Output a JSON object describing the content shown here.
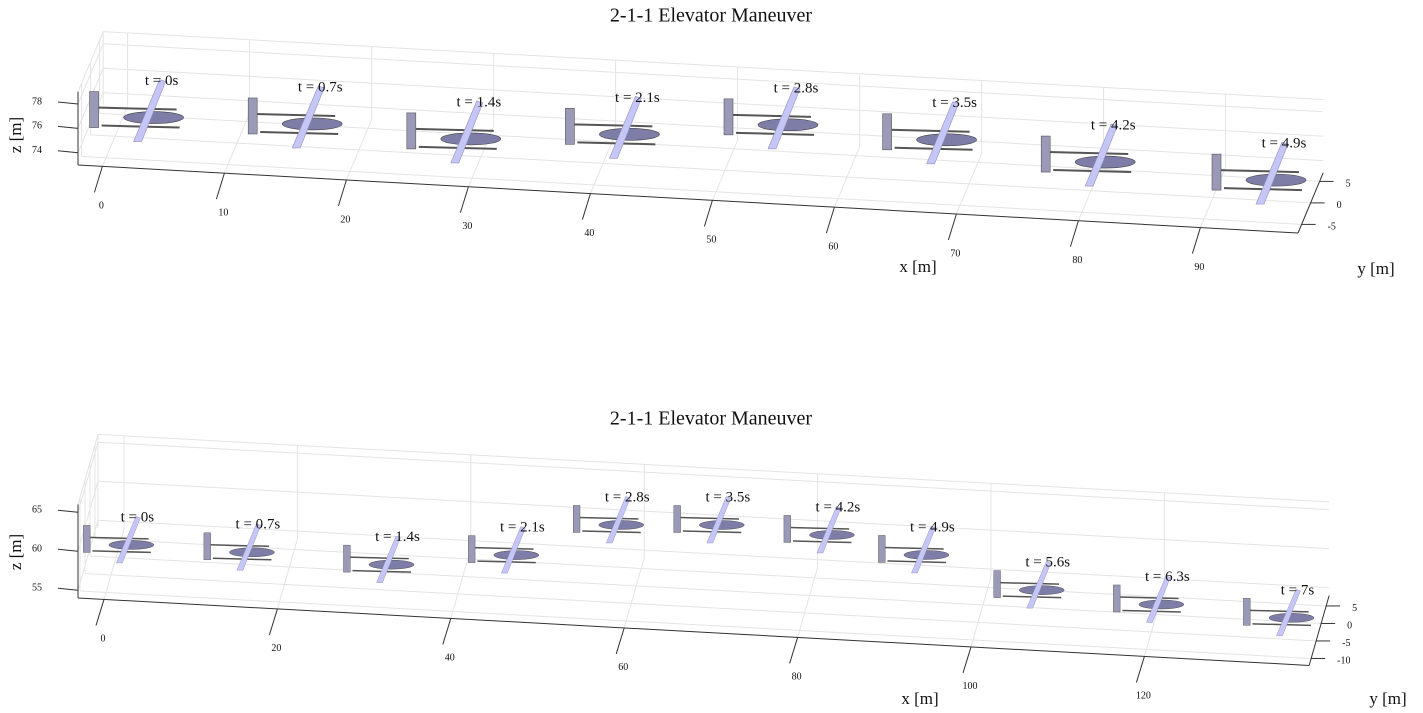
{
  "chart_data": [
    {
      "type": "trajectory3d",
      "title": "2-1-1 Elevator Maneuver",
      "xlabel": "x [m]",
      "ylabel": "y [m]",
      "zlabel": "z [m]",
      "xlim": [
        -2,
        98
      ],
      "ylim": [
        -7,
        7
      ],
      "zlim": [
        73,
        79
      ],
      "xticks": [
        0,
        10,
        20,
        30,
        40,
        50,
        60,
        70,
        80,
        90
      ],
      "yticks": [
        -5,
        0,
        5
      ],
      "zticks": [
        74,
        76,
        78
      ],
      "grid": true,
      "series": [
        {
          "color": "#c6c6f6",
          "labels": [
            "t = 0s",
            "t = 0.7s",
            "t = 1.4s",
            "t = 2.1s",
            "t = 2.8s",
            "t = 3.5s",
            "t = 4.2s",
            "t = 4.9s"
          ],
          "x": [
            3,
            16,
            29,
            42,
            55,
            68,
            81,
            95
          ],
          "y": [
            0,
            0,
            0,
            0,
            0,
            0,
            0,
            0
          ],
          "z": [
            74.7,
            74.9,
            74.4,
            75.5,
            77,
            76.5,
            75.4,
            74.7
          ]
        }
      ]
    },
    {
      "type": "trajectory3d",
      "title": "2-1-1 Elevator Maneuver",
      "xlabel": "x [m]",
      "ylabel": "y [m]",
      "zlabel": "z [m]",
      "xlim": [
        -3,
        139
      ],
      "ylim": [
        -12,
        8
      ],
      "zlim": [
        54,
        66
      ],
      "xticks": [
        0,
        20,
        40,
        60,
        80,
        100,
        120
      ],
      "yticks": [
        -10,
        -5,
        0,
        5
      ],
      "zticks": [
        55,
        60,
        65
      ],
      "grid": true,
      "series": [
        {
          "color": "#c6c6f6",
          "labels": [
            "t = 0s",
            "t = 0.7s",
            "t = 1.4s",
            "t = 2.1s",
            "t = 2.8s",
            "t = 3.5s",
            "t = 4.2s",
            "t = 4.9s",
            "t = 5.6s",
            "t = 6.3s",
            "t = 7s"
          ],
          "x": [
            1.6,
            15.5,
            31.6,
            46,
            58.1,
            69.7,
            82.4,
            93.3,
            106.6,
            120.4,
            135.4
          ],
          "y": [
            0,
            0,
            0,
            0,
            0,
            0,
            0,
            0,
            0,
            0,
            0
          ],
          "z": [
            55.7,
            55.6,
            55,
            57.1,
            61.7,
            62.4,
            61.9,
            60,
            56.3,
            55.3,
            54.5
          ]
        }
      ]
    }
  ]
}
